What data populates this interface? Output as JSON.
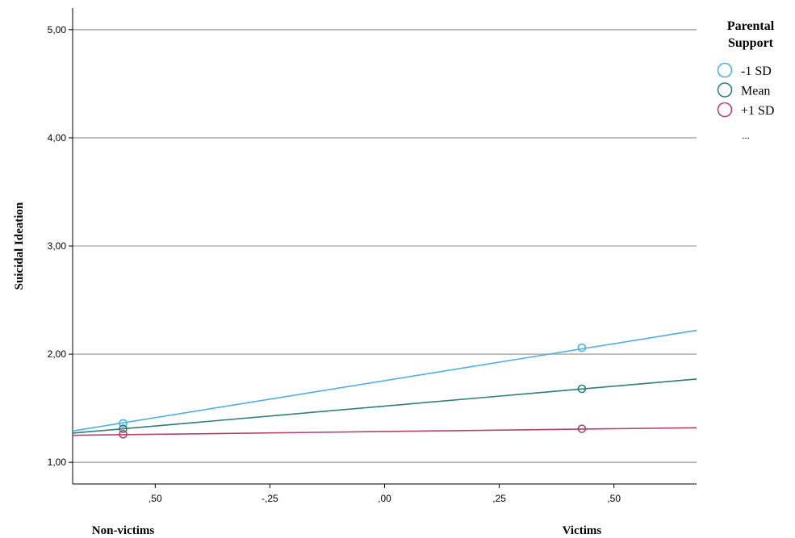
{
  "chart_data": {
    "type": "line",
    "ylabel": "Suicidal Ideation",
    "xlim": [
      -0.68,
      0.68
    ],
    "ylim": [
      0.8,
      5.2
    ],
    "x_ticks": [
      -0.5,
      -0.25,
      0,
      0.25,
      0.5
    ],
    "x_tick_labels": [
      ",50",
      "-,25",
      ",00",
      ",25",
      ",50"
    ],
    "y_ticks": [
      1,
      2,
      3,
      4,
      5
    ],
    "y_tick_labels": [
      "1,00",
      "2,00",
      "3,00",
      "4,00",
      "5,00"
    ],
    "group_labels": [
      {
        "label": "Non-victims",
        "x": -0.57
      },
      {
        "label": "Victims",
        "x": 0.43
      }
    ],
    "grid": true,
    "legend": {
      "title": [
        "Parental",
        "Support"
      ],
      "placement": "top-right",
      "extra": "..."
    },
    "series": [
      {
        "name": "-1 SD",
        "color": "#4db0e6",
        "points": [
          [
            -0.57,
            1.36
          ],
          [
            0.43,
            2.06
          ]
        ],
        "line": [
          [
            -0.68,
            1.29
          ],
          [
            0.68,
            2.22
          ]
        ]
      },
      {
        "name": "Mean",
        "color": "#2d7f77",
        "points": [
          [
            -0.57,
            1.31
          ],
          [
            0.43,
            1.68
          ]
        ],
        "line": [
          [
            -0.68,
            1.27
          ],
          [
            0.68,
            1.77
          ]
        ]
      },
      {
        "name": "+1 SD",
        "color": "#b5406a",
        "points": [
          [
            -0.57,
            1.26
          ],
          [
            0.43,
            1.31
          ]
        ],
        "line": [
          [
            -0.68,
            1.25
          ],
          [
            0.68,
            1.32
          ]
        ]
      }
    ]
  }
}
